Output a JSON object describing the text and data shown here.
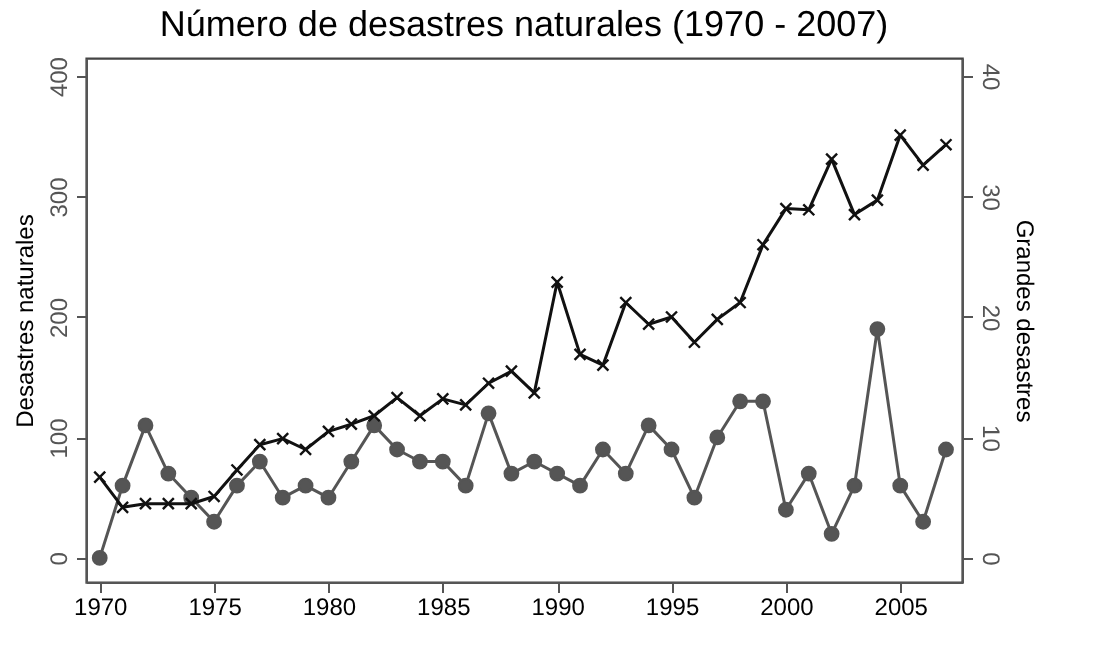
{
  "chart_data": {
    "type": "line",
    "title": "Número de desastres naturales (1970 - 2007)",
    "ylabel": "Desastres naturales",
    "y2label": "Grandes desastres",
    "x": [
      1970,
      1971,
      1972,
      1973,
      1974,
      1975,
      1976,
      1977,
      1978,
      1979,
      1980,
      1981,
      1982,
      1983,
      1984,
      1985,
      1986,
      1987,
      1988,
      1989,
      1990,
      1991,
      1992,
      1993,
      1994,
      1995,
      1996,
      1997,
      1998,
      1999,
      2000,
      2001,
      2002,
      2003,
      2004,
      2005,
      2006,
      2007
    ],
    "series": [
      {
        "color": "#111111",
        "marker": "cross",
        "values": [
          67,
          42,
          45,
          45,
          45,
          51,
          73,
          94,
          99,
          90,
          105,
          111,
          118,
          133,
          118,
          132,
          127,
          145,
          155,
          137,
          229,
          169,
          160,
          212,
          194,
          200,
          179,
          198,
          212,
          260,
          290,
          289,
          331,
          285,
          297,
          351,
          326,
          343
        ]
      },
      {
        "color": "#555555",
        "marker": "circle",
        "axis": "y2",
        "values": [
          0,
          6,
          11,
          7,
          5,
          3,
          6,
          8,
          5,
          6,
          5,
          8,
          11,
          9,
          8,
          8,
          6,
          12,
          7,
          8,
          7,
          6,
          9,
          7,
          11,
          9,
          5,
          10,
          13,
          13,
          4,
          7,
          2,
          6,
          19,
          6,
          3,
          9
        ]
      }
    ],
    "xlim": [
      1969.4,
      2007.7
    ],
    "xticks": [
      1970,
      1975,
      1980,
      1985,
      1990,
      1995,
      2000,
      2005
    ],
    "ylim": [
      -20,
      415
    ],
    "yticks": [
      0,
      100,
      200,
      300,
      400
    ],
    "y2lim": [
      -2,
      41.5
    ],
    "y2ticks": [
      0,
      10,
      20,
      30,
      40
    ],
    "grid": false
  }
}
